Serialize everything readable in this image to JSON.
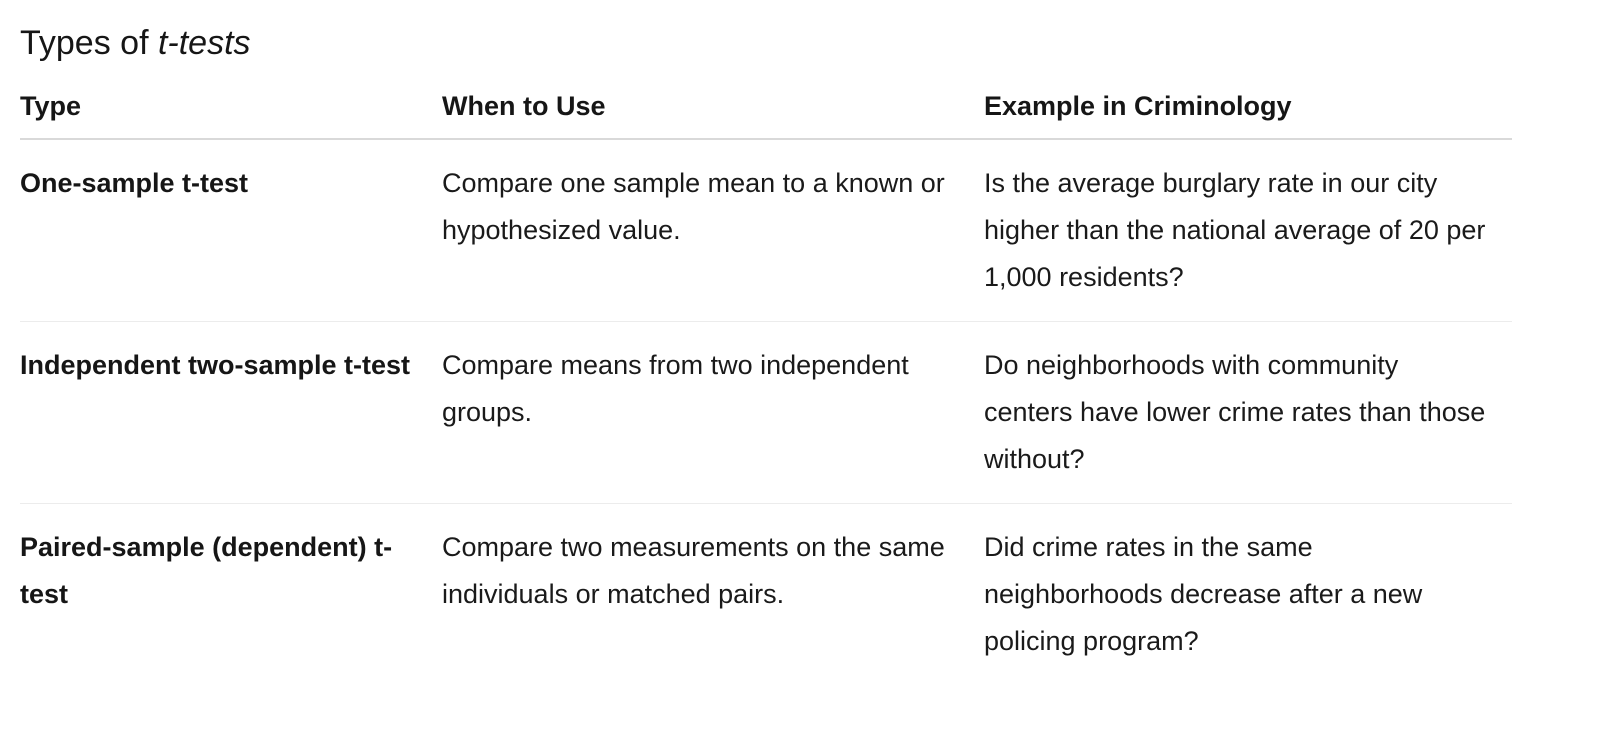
{
  "heading": {
    "prefix": "Types of ",
    "emphasis": "t-tests"
  },
  "table": {
    "columns": [
      "Type",
      "When to Use",
      "Example in Criminology"
    ],
    "rows": [
      {
        "type": "One-sample t-test",
        "when": "Compare one sample mean to a known or hypothesized value.",
        "example": "Is the average burglary rate in our city higher than the national average of 20 per 1,000 residents?"
      },
      {
        "type": "Independent two-sample t-test",
        "when": "Compare means from two independent groups.",
        "example": "Do neighborhoods with community centers have lower crime rates than those without?"
      },
      {
        "type": "Paired-sample (dependent) t-test",
        "when": "Compare two measurements on the same individuals or matched pairs.",
        "example": "Did crime rates in the same neighborhoods decrease after a new policing program?"
      }
    ]
  }
}
